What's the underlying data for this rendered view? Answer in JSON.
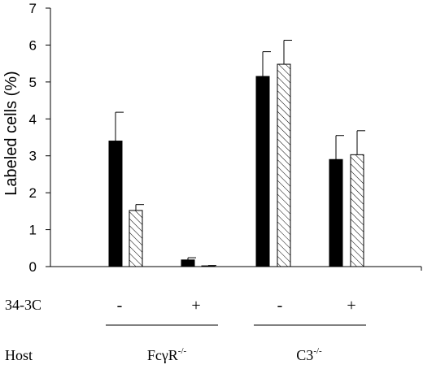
{
  "chart_data": {
    "type": "bar",
    "title": "",
    "ylabel": "Labeled cells (%)",
    "xlabel": "",
    "ylim": [
      0,
      7
    ],
    "yticks": [
      "0",
      "1",
      "2",
      "3",
      "4",
      "5",
      "6",
      "7"
    ],
    "grid": false,
    "legend": "none",
    "categories": [
      "-",
      "+",
      "-",
      "+"
    ],
    "series": [
      {
        "fill": "solid",
        "color": "#000000",
        "values": [
          3.4,
          0.18,
          5.15,
          2.9
        ],
        "errors": [
          0.78,
          0.06,
          0.67,
          0.65
        ]
      },
      {
        "fill": "hatched",
        "color": "#ffffff",
        "values": [
          1.52,
          0.02,
          5.48,
          3.03
        ],
        "errors": [
          0.16,
          0.01,
          0.65,
          0.65
        ]
      }
    ],
    "rows": {
      "treatment": {
        "label": "34-3C",
        "values": [
          "-",
          "+",
          "-",
          "+"
        ]
      },
      "host": {
        "label": "Host",
        "groups": [
          {
            "base": "FcγR",
            "sup": "-/-"
          },
          {
            "base": "C3",
            "sup": "-/-"
          }
        ]
      }
    }
  }
}
